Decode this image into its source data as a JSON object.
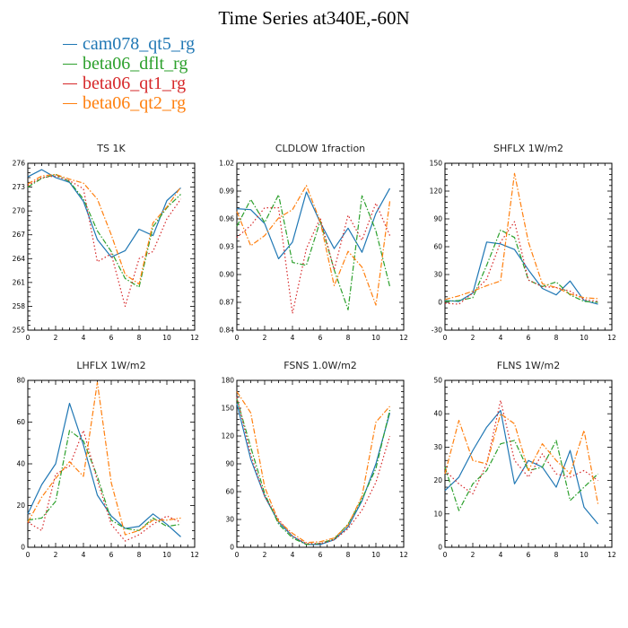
{
  "title": "Time Series at340E,-60N",
  "legend": [
    {
      "label": "cam078_qt5_rg",
      "color": "#1f77b4"
    },
    {
      "label": "beta06_dflt_rg",
      "color": "#2ca02c"
    },
    {
      "label": "beta06_qt1_rg",
      "color": "#d62728"
    },
    {
      "label": "beta06_qt2_rg",
      "color": "#ff7f0e"
    }
  ],
  "chart_data": [
    {
      "type": "line",
      "title": "TS  1K",
      "x": [
        0,
        1,
        2,
        3,
        4,
        5,
        6,
        7,
        8,
        9,
        10,
        11
      ],
      "xlim": [
        0,
        12
      ],
      "xticks": [
        "0",
        "2",
        "4",
        "6",
        "8",
        "10",
        "12"
      ],
      "ylim": [
        255,
        276
      ],
      "yticks": [
        "255",
        "258",
        "261",
        "264",
        "267",
        "270",
        "273",
        "276"
      ],
      "series": [
        {
          "name": "cam078_qt5_rg",
          "color": "#1f77b4",
          "dash": "solid",
          "values": [
            274.3,
            275.2,
            274.2,
            273.6,
            271.2,
            266.4,
            264.2,
            265.0,
            267.7,
            266.9,
            271.3,
            272.9
          ]
        },
        {
          "name": "beta06_dflt_rg",
          "color": "#2ca02c",
          "dash": "dashdot",
          "values": [
            273.0,
            274.1,
            274.6,
            273.7,
            271.5,
            267.5,
            264.9,
            261.5,
            260.4,
            268.0,
            270.4,
            272.1
          ]
        },
        {
          "name": "beta06_qt1_rg",
          "color": "#d62728",
          "dash": "dot",
          "values": [
            273.2,
            274.2,
            274.4,
            273.8,
            272.8,
            263.6,
            264.6,
            258.0,
            264.0,
            264.9,
            269.0,
            271.5
          ]
        },
        {
          "name": "beta06_qt2_rg",
          "color": "#ff7f0e",
          "dash": "dashdot",
          "values": [
            273.4,
            274.4,
            274.6,
            274.0,
            273.5,
            271.5,
            267.0,
            262.0,
            260.8,
            268.5,
            270.5,
            273.0
          ]
        }
      ]
    },
    {
      "type": "line",
      "title": "CLDLOW  1fraction",
      "x": [
        0,
        1,
        2,
        3,
        4,
        5,
        6,
        7,
        8,
        9,
        10,
        11
      ],
      "xlim": [
        0,
        12
      ],
      "xticks": [
        "0",
        "2",
        "4",
        "6",
        "8",
        "10",
        "12"
      ],
      "ylim": [
        0.84,
        1.02
      ],
      "yticks": [
        "0.84",
        "0.87",
        "0.90",
        "0.93",
        "0.96",
        "0.99",
        "1.02"
      ],
      "series": [
        {
          "name": "cam078_qt5_rg",
          "color": "#1f77b4",
          "dash": "solid",
          "values": [
            0.971,
            0.97,
            0.955,
            0.917,
            0.935,
            0.989,
            0.956,
            0.928,
            0.95,
            0.924,
            0.966,
            0.993
          ]
        },
        {
          "name": "beta06_dflt_rg",
          "color": "#2ca02c",
          "dash": "dashdot",
          "values": [
            0.952,
            0.981,
            0.956,
            0.986,
            0.913,
            0.91,
            0.958,
            0.905,
            0.862,
            0.985,
            0.947,
            0.887
          ]
        },
        {
          "name": "beta06_qt1_rg",
          "color": "#d62728",
          "dash": "dot",
          "values": [
            0.94,
            0.953,
            0.972,
            0.972,
            0.858,
            0.928,
            0.961,
            0.905,
            0.964,
            0.937,
            0.977,
            0.942
          ]
        },
        {
          "name": "beta06_qt2_rg",
          "color": "#ff7f0e",
          "dash": "dashdot",
          "values": [
            0.968,
            0.931,
            0.942,
            0.961,
            0.97,
            0.996,
            0.957,
            0.888,
            0.925,
            0.908,
            0.867,
            0.979
          ]
        }
      ]
    },
    {
      "type": "line",
      "title": "SHFLX  1W/m2",
      "x": [
        0,
        1,
        2,
        3,
        4,
        5,
        6,
        7,
        8,
        9,
        10,
        11
      ],
      "xlim": [
        0,
        12
      ],
      "xticks": [
        "0",
        "2",
        "4",
        "6",
        "8",
        "10",
        "12"
      ],
      "ylim": [
        -30,
        150
      ],
      "yticks": [
        "-30",
        "0",
        "30",
        "60",
        "90",
        "120",
        "150"
      ],
      "series": [
        {
          "name": "cam078_qt5_rg",
          "color": "#1f77b4",
          "dash": "solid",
          "values": [
            2,
            1,
            10,
            65,
            63,
            57,
            35,
            15,
            8,
            23,
            2,
            -2
          ]
        },
        {
          "name": "beta06_dflt_rg",
          "color": "#2ca02c",
          "dash": "dashdot",
          "values": [
            1,
            2,
            5,
            40,
            78,
            70,
            24,
            17,
            22,
            8,
            1,
            0
          ]
        },
        {
          "name": "beta06_qt1_rg",
          "color": "#d62728",
          "dash": "dot",
          "values": [
            -1,
            -2,
            10,
            25,
            65,
            87,
            24,
            17,
            16,
            12,
            3,
            1
          ]
        },
        {
          "name": "beta06_qt2_rg",
          "color": "#ff7f0e",
          "dash": "dashdot",
          "values": [
            3,
            7,
            12,
            18,
            23,
            139,
            65,
            20,
            16,
            9,
            5,
            4
          ]
        }
      ]
    },
    {
      "type": "line",
      "title": "LHFLX  1W/m2",
      "x": [
        0,
        1,
        2,
        3,
        4,
        5,
        6,
        7,
        8,
        9,
        10,
        11
      ],
      "xlim": [
        0,
        12
      ],
      "xticks": [
        "0",
        "2",
        "4",
        "6",
        "8",
        "10",
        "12"
      ],
      "ylim": [
        0,
        80
      ],
      "yticks": [
        "0",
        "20",
        "40",
        "60",
        "80"
      ],
      "series": [
        {
          "name": "cam078_qt5_rg",
          "color": "#1f77b4",
          "dash": "solid",
          "values": [
            16,
            30,
            40,
            69,
            49,
            25,
            15,
            9,
            10,
            16,
            11,
            5
          ]
        },
        {
          "name": "beta06_dflt_rg",
          "color": "#2ca02c",
          "dash": "dashdot",
          "values": [
            13,
            14,
            22,
            56,
            51,
            34,
            13,
            9,
            8,
            14,
            10,
            11
          ]
        },
        {
          "name": "beta06_qt1_rg",
          "color": "#d62728",
          "dash": "dot",
          "values": [
            12,
            8,
            35,
            39,
            56,
            32,
            11,
            3,
            6,
            11,
            15,
            12
          ]
        },
        {
          "name": "beta06_qt2_rg",
          "color": "#ff7f0e",
          "dash": "dashdot",
          "values": [
            12,
            24,
            33,
            41,
            34,
            79,
            31,
            6,
            8,
            13,
            13,
            14
          ]
        }
      ]
    },
    {
      "type": "line",
      "title": "FSNS  1.0W/m2",
      "x": [
        0,
        1,
        2,
        3,
        4,
        5,
        6,
        7,
        8,
        9,
        10,
        11
      ],
      "xlim": [
        0,
        12
      ],
      "xticks": [
        "0",
        "2",
        "4",
        "6",
        "8",
        "10",
        "12"
      ],
      "ylim": [
        0,
        180
      ],
      "yticks": [
        "0",
        "30",
        "60",
        "90",
        "120",
        "150",
        "180"
      ],
      "series": [
        {
          "name": "cam078_qt5_rg",
          "color": "#1f77b4",
          "dash": "solid",
          "values": [
            155,
            95,
            55,
            27,
            12,
            3,
            3,
            8,
            22,
            50,
            90,
            145
          ]
        },
        {
          "name": "beta06_dflt_rg",
          "color": "#2ca02c",
          "dash": "dashdot",
          "values": [
            160,
            108,
            58,
            25,
            10,
            3,
            4,
            9,
            25,
            52,
            85,
            148
          ]
        },
        {
          "name": "beta06_qt1_rg",
          "color": "#d62728",
          "dash": "dot",
          "values": [
            162,
            100,
            55,
            30,
            12,
            4,
            4,
            8,
            20,
            40,
            70,
            120
          ]
        },
        {
          "name": "beta06_qt2_rg",
          "color": "#ff7f0e",
          "dash": "dashdot",
          "values": [
            168,
            145,
            65,
            28,
            15,
            5,
            6,
            10,
            24,
            55,
            135,
            152
          ]
        }
      ]
    },
    {
      "type": "line",
      "title": "FLNS  1W/m2",
      "x": [
        0,
        1,
        2,
        3,
        4,
        5,
        6,
        7,
        8,
        9,
        10,
        11
      ],
      "xlim": [
        0,
        12
      ],
      "xticks": [
        "0",
        "2",
        "4",
        "6",
        "8",
        "10",
        "12"
      ],
      "ylim": [
        0,
        50
      ],
      "yticks": [
        "0",
        "10",
        "20",
        "30",
        "40",
        "50"
      ],
      "series": [
        {
          "name": "cam078_qt5_rg",
          "color": "#1f77b4",
          "dash": "solid",
          "values": [
            17,
            21,
            29,
            36,
            41,
            19,
            26,
            24,
            18,
            29,
            12,
            7
          ]
        },
        {
          "name": "beta06_dflt_rg",
          "color": "#2ca02c",
          "dash": "dashdot",
          "values": [
            24,
            11,
            19,
            23,
            31,
            32,
            23,
            24,
            32,
            14,
            18,
            22
          ]
        },
        {
          "name": "beta06_qt1_rg",
          "color": "#d62728",
          "dash": "dot",
          "values": [
            23,
            19,
            16,
            25,
            44,
            26,
            21,
            28,
            22,
            21,
            23,
            20
          ]
        },
        {
          "name": "beta06_qt2_rg",
          "color": "#ff7f0e",
          "dash": "dashdot",
          "values": [
            22,
            38,
            26,
            25,
            40,
            37,
            23,
            31,
            26,
            22,
            35,
            13
          ]
        }
      ]
    }
  ]
}
